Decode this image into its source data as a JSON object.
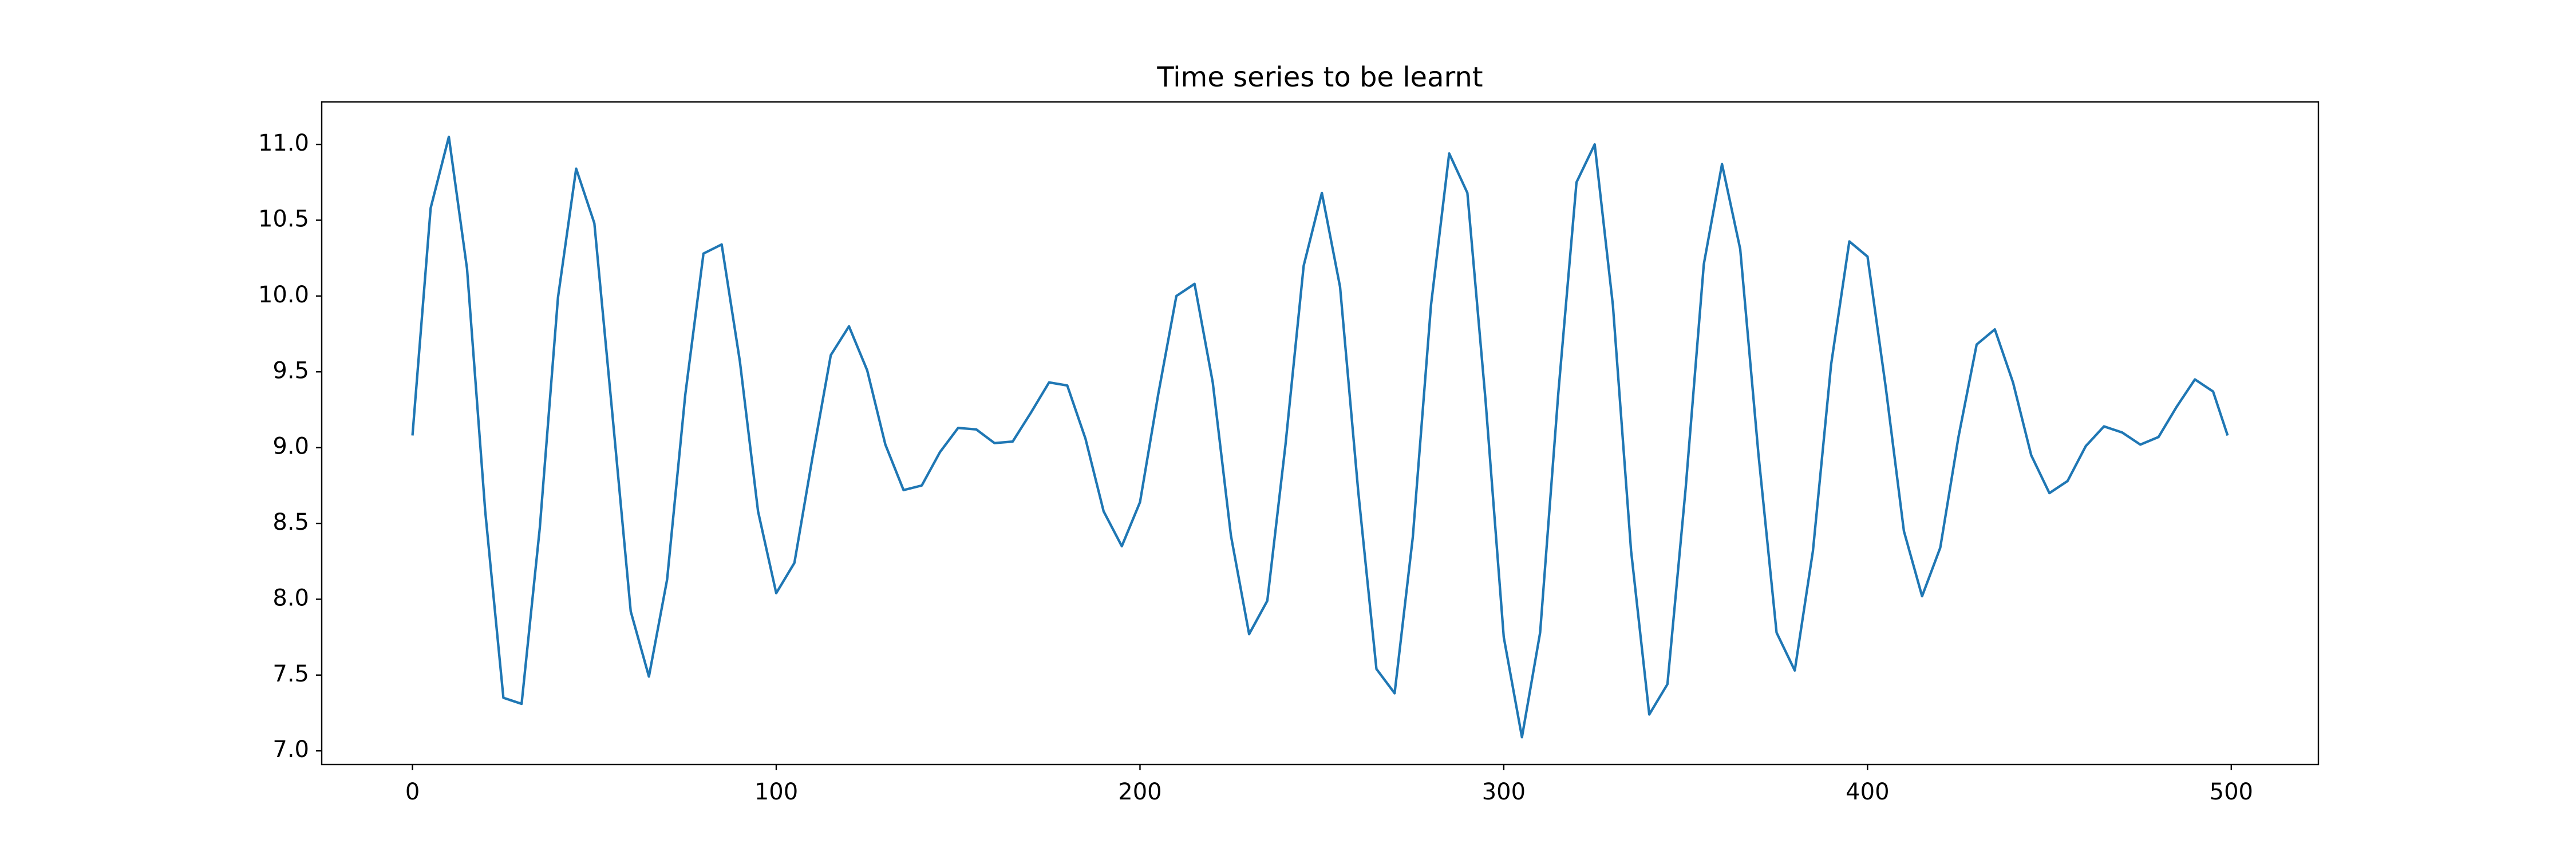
{
  "chart_data": {
    "type": "line",
    "title": "Time series to be learnt",
    "x": [
      0,
      5,
      10,
      15,
      20,
      25,
      30,
      35,
      40,
      45,
      50,
      55,
      60,
      65,
      70,
      75,
      80,
      85,
      90,
      95,
      100,
      105,
      110,
      115,
      120,
      125,
      130,
      135,
      140,
      145,
      150,
      155,
      160,
      165,
      170,
      175,
      180,
      185,
      190,
      195,
      200,
      205,
      210,
      215,
      220,
      225,
      230,
      235,
      240,
      245,
      250,
      255,
      260,
      265,
      270,
      275,
      280,
      285,
      290,
      295,
      300,
      305,
      310,
      315,
      320,
      325,
      330,
      335,
      340,
      345,
      350,
      355,
      360,
      365,
      370,
      375,
      380,
      385,
      390,
      395,
      400,
      405,
      410,
      415,
      420,
      425,
      430,
      435,
      440,
      445,
      450,
      455,
      460,
      465,
      470,
      475,
      480,
      485,
      490,
      495,
      499
    ],
    "series": [
      {
        "color": "#1f77b4",
        "values": [
          9.08,
          10.58,
          11.05,
          10.18,
          8.58,
          7.35,
          7.31,
          8.47,
          9.99,
          10.84,
          10.48,
          9.21,
          7.92,
          7.49,
          8.13,
          9.35,
          10.28,
          10.34,
          9.57,
          8.58,
          8.04,
          8.24,
          8.94,
          9.61,
          9.8,
          9.51,
          9.02,
          8.72,
          8.75,
          8.97,
          9.13,
          9.12,
          9.03,
          9.04,
          9.23,
          9.43,
          9.41,
          9.06,
          8.58,
          8.35,
          8.64,
          9.35,
          10.0,
          10.08,
          9.43,
          8.42,
          7.77,
          7.99,
          9.02,
          10.2,
          10.68,
          10.06,
          8.71,
          7.54,
          7.38,
          8.41,
          9.94,
          10.94,
          10.68,
          9.31,
          7.75,
          7.09,
          7.78,
          9.36,
          10.75,
          11.0,
          9.94,
          8.32,
          7.24,
          7.44,
          8.73,
          10.21,
          10.87,
          10.31,
          8.96,
          7.78,
          7.53,
          8.32,
          9.55,
          10.36,
          10.26,
          9.4,
          8.45,
          8.02,
          8.34,
          9.07,
          9.68,
          9.78,
          9.43,
          8.95,
          8.7,
          8.78,
          9.01,
          9.14,
          9.1,
          9.02,
          9.07,
          9.27,
          9.45,
          9.37,
          9.08
        ]
      }
    ],
    "xlim": [
      -24.95,
      523.95
    ],
    "xticks": [
      0,
      100,
      200,
      300,
      400,
      500
    ],
    "ylim": [
      6.91,
      11.28
    ],
    "yticks": [
      {
        "value": 7,
        "label": "7.0"
      },
      7.5,
      {
        "value": 8,
        "label": "8.0"
      },
      8.5,
      {
        "value": 9,
        "label": "9.0"
      },
      9.5,
      {
        "value": 10,
        "label": "10.0"
      },
      10.5,
      {
        "value": 11,
        "label": "11.0"
      }
    ],
    "grid": false
  }
}
